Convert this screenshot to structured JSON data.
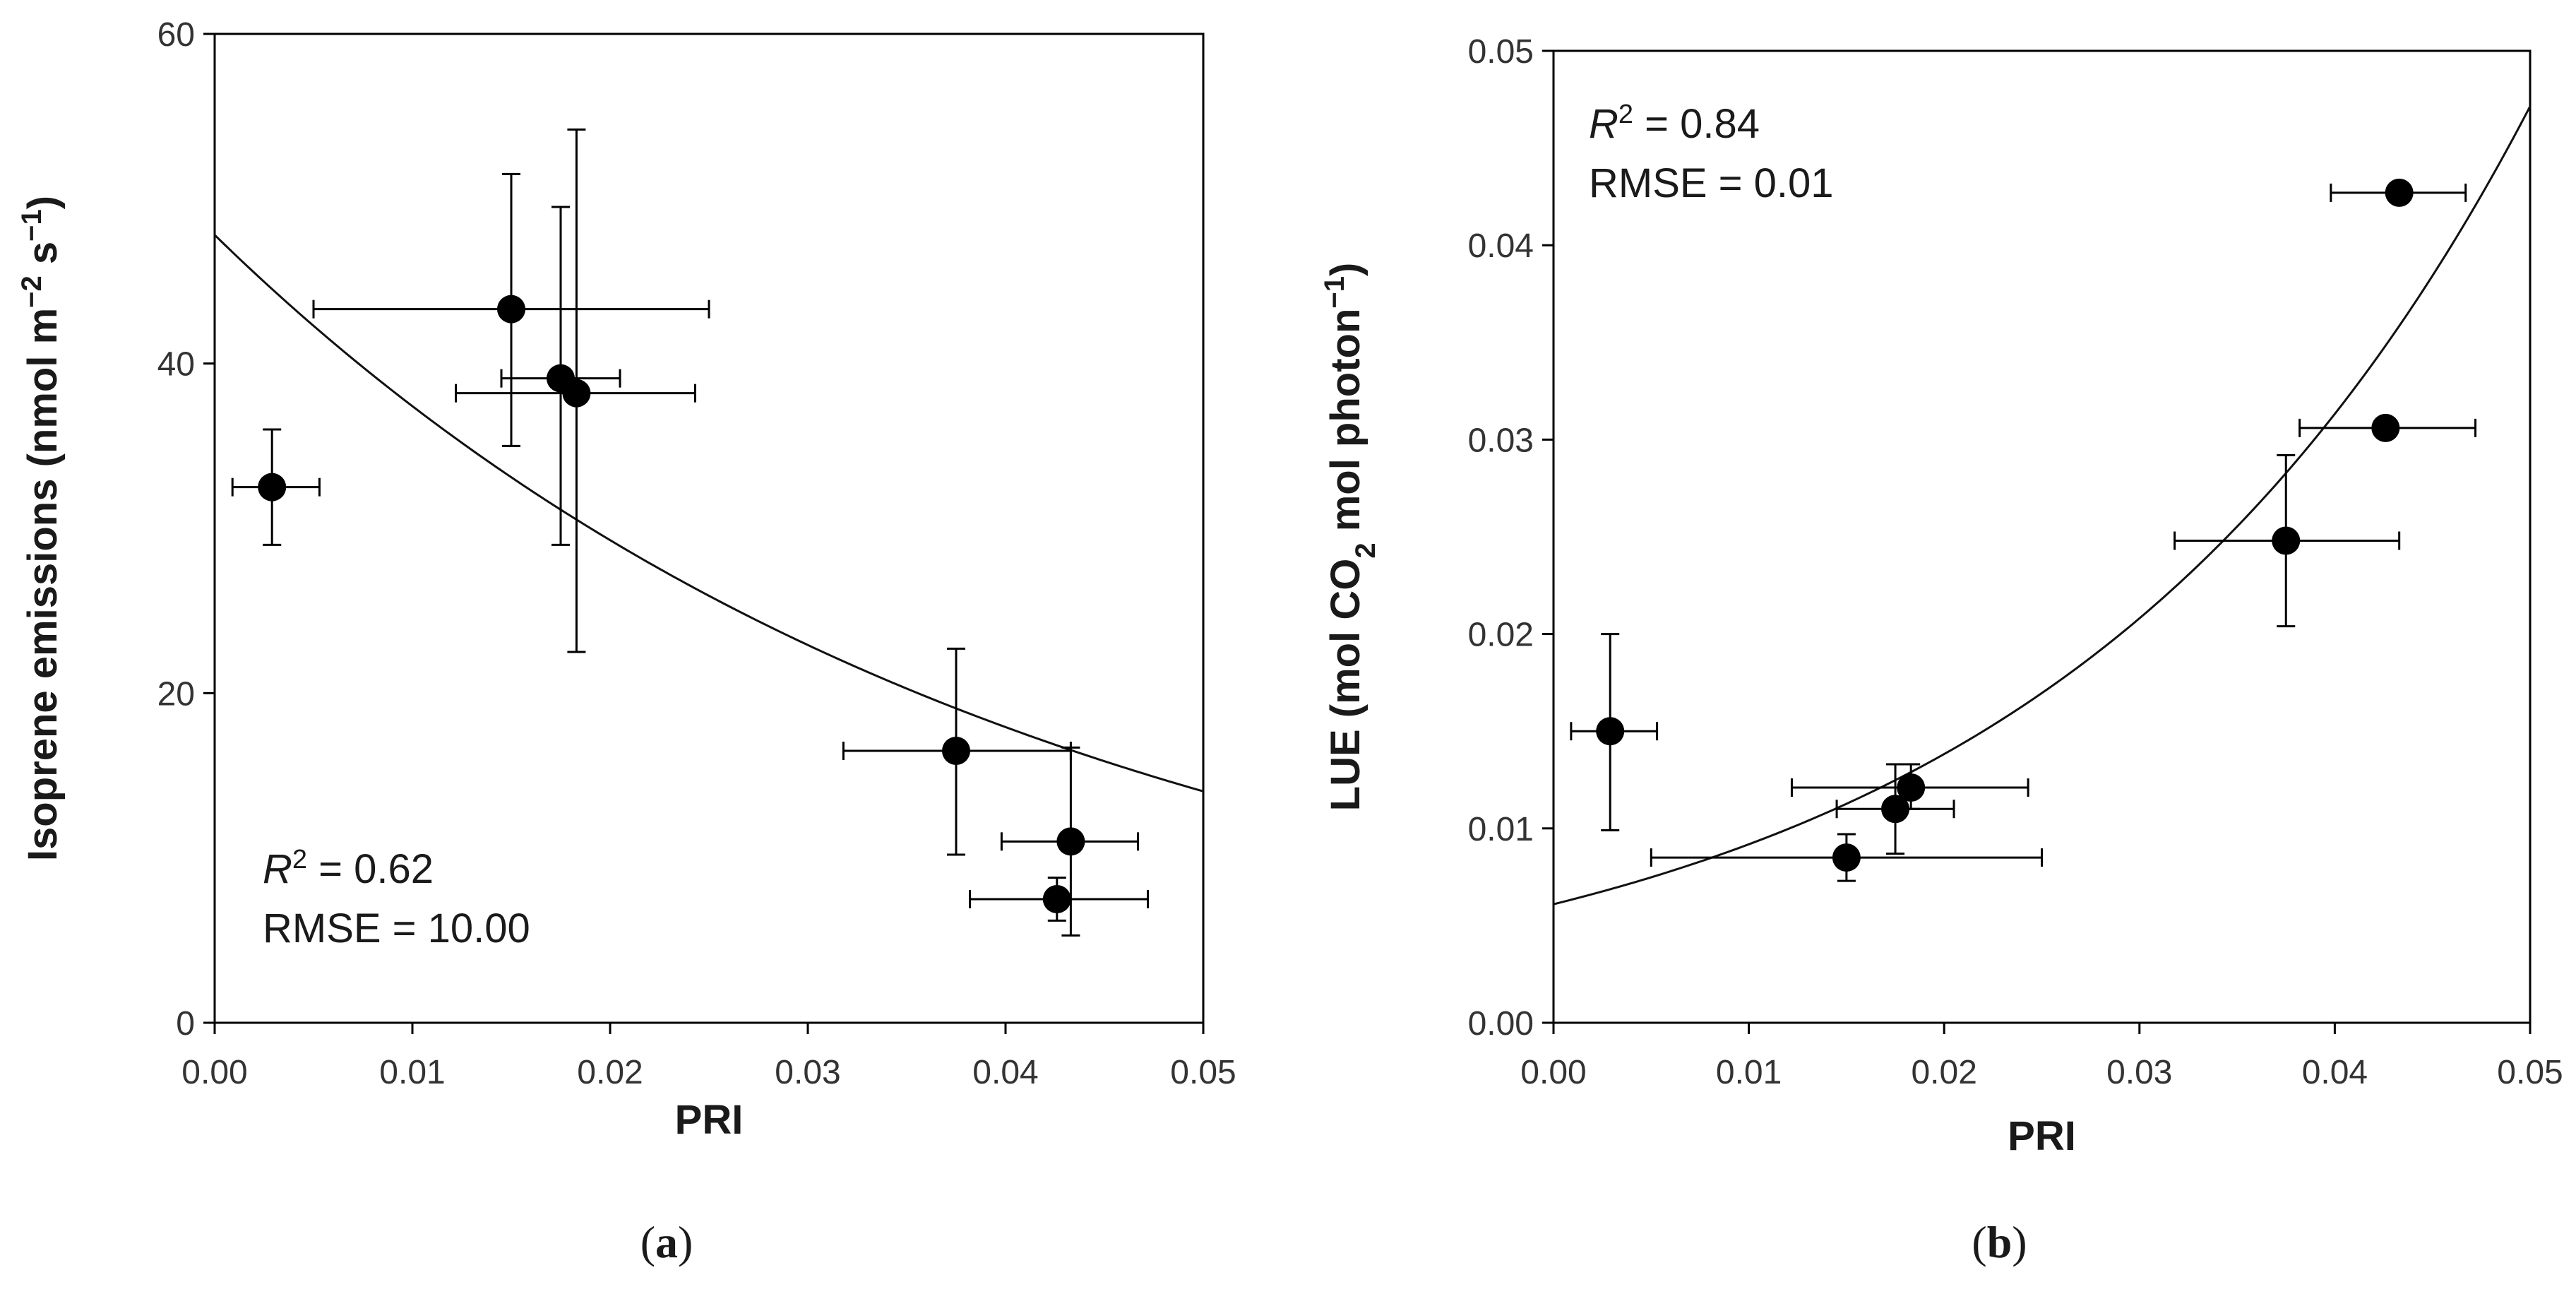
{
  "chart_data": [
    {
      "type": "scatter",
      "panel_label": "a",
      "xlabel": "PRI",
      "ylabel": "Isoprene emissions (nmol m⁻² s⁻¹)",
      "ylabel_parts": {
        "prefix": "Isoprene emissions (nmol m",
        "sup1": "−2",
        "middle": " s",
        "sup2": "−1",
        "suffix": ")"
      },
      "xlim": [
        0,
        0.05
      ],
      "ylim": [
        0,
        60
      ],
      "xticks": [
        0,
        0.01,
        0.02,
        0.03,
        0.04,
        0.05
      ],
      "xtick_labels": [
        "0.00",
        "0.01",
        "0.02",
        "0.03",
        "0.04",
        "0.05"
      ],
      "yticks": [
        0,
        20,
        40,
        60
      ],
      "ytick_labels": [
        "0",
        "20",
        "40",
        "60"
      ],
      "points": [
        {
          "x": 0.0029,
          "y": 32.5,
          "xerr": [
            0.0009,
            0.0053
          ],
          "yerr": [
            29.0,
            36.0
          ]
        },
        {
          "x": 0.015,
          "y": 43.3,
          "xerr": [
            0.005,
            0.025
          ],
          "yerr": [
            35.0,
            51.5
          ]
        },
        {
          "x": 0.0175,
          "y": 39.1,
          "xerr": [
            0.0145,
            0.0205
          ],
          "yerr": [
            29.0,
            49.5
          ]
        },
        {
          "x": 0.0183,
          "y": 38.2,
          "xerr": [
            0.0122,
            0.0243
          ],
          "yerr": [
            22.5,
            54.2
          ]
        },
        {
          "x": 0.0375,
          "y": 16.5,
          "xerr": [
            0.0318,
            0.0433
          ],
          "yerr": [
            10.2,
            22.7
          ]
        },
        {
          "x": 0.0433,
          "y": 11.0,
          "xerr": [
            0.0398,
            0.0467
          ],
          "yerr": [
            5.3,
            16.7
          ]
        },
        {
          "x": 0.0426,
          "y": 7.5,
          "xerr": [
            0.0382,
            0.0472
          ],
          "yerr": [
            6.2,
            8.8
          ]
        }
      ],
      "fit": {
        "type": "exponential",
        "a": 47.8,
        "b": -24.5
      },
      "stats": {
        "r_symbol": "R",
        "r_sup": "2",
        "r2": "= 0.62",
        "rmse": "RMSE = 10.00"
      },
      "stats_position": "bottom-left"
    },
    {
      "type": "scatter",
      "panel_label": "b",
      "xlabel": "PRI",
      "ylabel": "LUE (mol CO₂ mol photon⁻¹)",
      "ylabel_parts": {
        "prefix": "LUE (mol CO",
        "sub": "2",
        "middle": " mol photon",
        "sup": "−1",
        "suffix": ")"
      },
      "xlim": [
        0,
        0.05
      ],
      "ylim": [
        0,
        0.05
      ],
      "xticks": [
        0,
        0.01,
        0.02,
        0.03,
        0.04,
        0.05
      ],
      "xtick_labels": [
        "0.00",
        "0.01",
        "0.02",
        "0.03",
        "0.04",
        "0.05"
      ],
      "yticks": [
        0,
        0.01,
        0.02,
        0.03,
        0.04,
        0.05
      ],
      "ytick_labels": [
        "0.00",
        "0.01",
        "0.02",
        "0.03",
        "0.04",
        "0.05"
      ],
      "points": [
        {
          "x": 0.0029,
          "y": 0.015,
          "xerr": [
            0.0009,
            0.0053
          ],
          "yerr": [
            0.0099,
            0.02
          ]
        },
        {
          "x": 0.015,
          "y": 0.0085,
          "xerr": [
            0.005,
            0.025
          ],
          "yerr": [
            0.0073,
            0.0097
          ]
        },
        {
          "x": 0.0175,
          "y": 0.011,
          "xerr": [
            0.0145,
            0.0205
          ],
          "yerr": [
            0.0087,
            0.0133
          ]
        },
        {
          "x": 0.0183,
          "y": 0.0121,
          "xerr": [
            0.0122,
            0.0243
          ],
          "yerr": [
            0.011,
            0.0133
          ]
        },
        {
          "x": 0.0375,
          "y": 0.0248,
          "xerr": [
            0.0318,
            0.0433
          ],
          "yerr": [
            0.0204,
            0.0292
          ]
        },
        {
          "x": 0.0426,
          "y": 0.0306,
          "xerr": [
            0.0382,
            0.0472
          ],
          "yerr": [
            0.0306,
            0.0306
          ]
        },
        {
          "x": 0.0433,
          "y": 0.0427,
          "xerr": [
            0.0398,
            0.0467
          ],
          "yerr": [
            0.0427,
            0.0427
          ]
        }
      ],
      "fit": {
        "type": "exponential",
        "a": 0.0061,
        "b": 40.9
      },
      "stats": {
        "r_symbol": "R",
        "r_sup": "2",
        "r2": "= 0.84",
        "rmse": "RMSE = 0.01"
      },
      "stats_position": "top-left"
    }
  ]
}
